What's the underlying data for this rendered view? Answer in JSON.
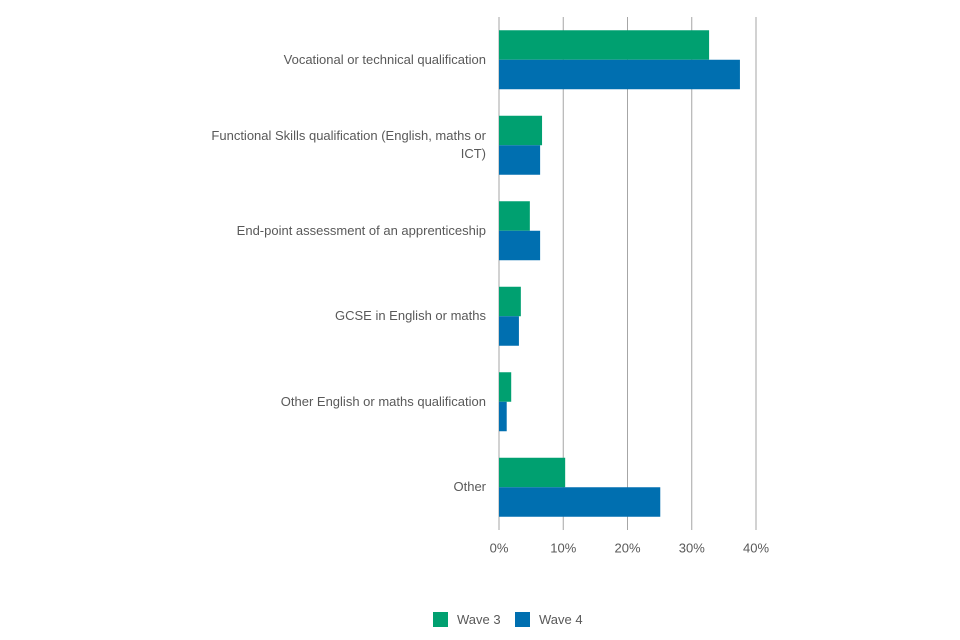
{
  "chart_data": {
    "type": "hbar",
    "categories": [
      "Vocational or technical qualification",
      "Functional Skills qualification (English, maths or ICT)",
      "End-point assessment of an apprenticeship",
      "GCSE in English or maths",
      "Other English or maths qualification",
      "Other"
    ],
    "series": [
      {
        "name": "Wave 3",
        "color": "#00a070",
        "values": [
          32.7,
          6.7,
          4.8,
          3.4,
          1.9,
          10.3
        ]
      },
      {
        "name": "Wave 4",
        "color": "#006fb0",
        "values": [
          37.5,
          6.4,
          6.4,
          3.1,
          1.2,
          25.1
        ]
      }
    ],
    "xlim": [
      0,
      40
    ],
    "xticks": [
      {
        "value": 0,
        "label": "0%"
      },
      {
        "value": 10,
        "label": "10%"
      },
      {
        "value": 20,
        "label": "20%"
      },
      {
        "value": 30,
        "label": "30%"
      },
      {
        "value": 40,
        "label": "40%"
      }
    ],
    "grid": true,
    "legend": "bottom"
  }
}
